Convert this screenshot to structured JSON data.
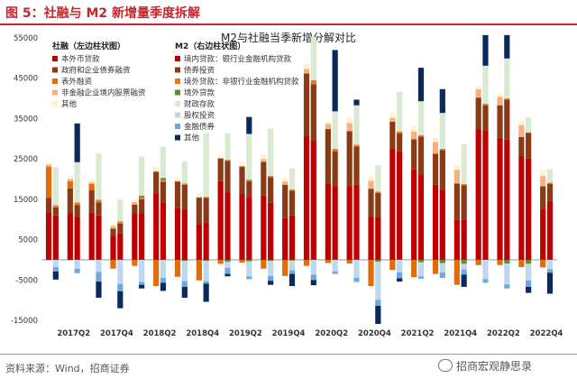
{
  "figure": {
    "title": "图 5：社融与 M2 新增量季度拆解",
    "source": "资料来源：Wind，招商证券",
    "watermark": "招商宏观静思录"
  },
  "chart_data": {
    "type": "bar",
    "stacked": true,
    "title": "M2与社融当季新增分解对比",
    "xlabel": "",
    "ylabel": "",
    "ylim": [
      -15000,
      55000
    ],
    "yticks": [
      -15000,
      -5000,
      5000,
      15000,
      25000,
      35000,
      45000,
      55000
    ],
    "ytick_labels": [
      "-15000",
      "-5000",
      "5000",
      "15000",
      "25000",
      "35000",
      "45000",
      "55000"
    ],
    "grid": false,
    "categories": [
      "2017Q1",
      "2017Q2",
      "2017Q3",
      "2017Q4",
      "2018Q1",
      "2018Q2",
      "2018Q3",
      "2018Q4",
      "2019Q1",
      "2019Q2",
      "2019Q3",
      "2019Q4",
      "2020Q1",
      "2020Q2",
      "2020Q3",
      "2020Q4",
      "2021Q1",
      "2021Q2",
      "2021Q3",
      "2021Q4",
      "2022Q1",
      "2022Q2",
      "2022Q3",
      "2022Q4"
    ],
    "x_tick_labels": [
      "2017Q2",
      "2017Q4",
      "2018Q2",
      "2018Q4",
      "2019Q2",
      "2019Q4",
      "2020Q2",
      "2020Q4",
      "2021Q2",
      "2021Q4",
      "2022Q2",
      "2022Q4"
    ],
    "legend_placement": "top-left",
    "tsf": {
      "legend_title": "社融（左边柱状图）",
      "series": [
        {
          "name": "本外币贷款",
          "color": "#c00000",
          "values": [
            11800,
            11500,
            11700,
            5900,
            11500,
            16500,
            12800,
            8900,
            19500,
            16400,
            15900,
            10300,
            30800,
            18900,
            18300,
            10700,
            27500,
            22400,
            18600,
            9900,
            32400,
            30200,
            25700,
            12500
          ]
        },
        {
          "name": "政府和企业债券融资",
          "color": "#8b3a16",
          "values": [
            3500,
            6200,
            5500,
            1800,
            2200,
            5300,
            6600,
            6500,
            5600,
            6700,
            8400,
            8300,
            15400,
            13500,
            13600,
            6900,
            6700,
            7500,
            7700,
            9000,
            7800,
            8100,
            4700,
            5700
          ]
        },
        {
          "name": "表外融资",
          "color": "#e26b0a",
          "values": [
            7800,
            1800,
            1600,
            -2200,
            -1500,
            -6500,
            -4200,
            -5100,
            -1000,
            -700,
            -2200,
            -4000,
            -1500,
            -800,
            -900,
            -6500,
            -2500,
            -4300,
            -3500,
            -6200,
            -1300,
            -1300,
            -1800,
            -1900
          ]
        },
        {
          "name": "非金融企业境内股票融资",
          "color": "#f4b183",
          "values": [
            500,
            500,
            400,
            700,
            600,
            200,
            200,
            200,
            200,
            200,
            700,
            800,
            1100,
            1300,
            2000,
            2000,
            1000,
            1900,
            2900,
            3400,
            2100,
            2100,
            3000,
            2600
          ]
        },
        {
          "name": "其他",
          "color": "#fff2cc",
          "values": [
            600,
            900,
            700,
            600,
            700,
            1000,
            1000,
            900,
            700,
            1100,
            1200,
            1100,
            1200,
            600,
            1200,
            1300,
            1200,
            1500,
            1000,
            1200,
            900,
            700,
            1200,
            1400
          ]
        }
      ]
    },
    "m2": {
      "legend_title": "M2（右边柱状图）",
      "series": [
        {
          "name": "境内贷款：银行业金融机构贷款",
          "color": "#c00000",
          "values": [
            11000,
            10600,
            11000,
            6500,
            11500,
            14200,
            12400,
            9300,
            16900,
            15600,
            14100,
            11000,
            29500,
            18300,
            18600,
            10500,
            27000,
            21000,
            17400,
            10000,
            32100,
            29800,
            25200,
            14600
          ]
        },
        {
          "name": "债券投资",
          "color": "#8b3a16",
          "values": [
            2000,
            3000,
            3200,
            2500,
            3500,
            5100,
            6200,
            6000,
            7600,
            3900,
            6400,
            6100,
            14000,
            8600,
            9500,
            6100,
            4300,
            9500,
            9800,
            8500,
            6200,
            9900,
            6200,
            4200
          ]
        },
        {
          "name": "境外贷款：非银行业金融机构贷款",
          "color": "#e87722",
          "values": [
            500,
            600,
            700,
            500,
            500,
            500,
            300,
            300,
            300,
            400,
            300,
            300,
            1000,
            600,
            400,
            300,
            500,
            400,
            300,
            300,
            400,
            300,
            200,
            300
          ]
        },
        {
          "name": "境外贷款",
          "color": "#5e8c31",
          "values": [
            0,
            0,
            0,
            0,
            400,
            500,
            -300,
            -300,
            -500,
            -400,
            -300,
            -200,
            0,
            0,
            0,
            -500,
            0,
            -600,
            -800,
            -1000,
            0,
            -900,
            -1000,
            0
          ]
        },
        {
          "name": "财政存款",
          "color": "#d9ead3",
          "values": [
            9500,
            10000,
            11400,
            5500,
            9700,
            7700,
            5500,
            15800,
            6600,
            11300,
            11700,
            5300,
            10800,
            9300,
            9800,
            6500,
            9900,
            8400,
            8900,
            9800,
            9400,
            9900,
            3700,
            3400
          ]
        },
        {
          "name": "股权投资",
          "color": "#bdd7ee",
          "values": [
            -1800,
            -2200,
            -3000,
            -6000,
            -5500,
            -4500,
            -5000,
            -5000,
            -1500,
            -3700,
            -3700,
            -2400,
            -3700,
            -2900,
            -4500,
            -9400,
            -3100,
            -3500,
            -2300,
            -1400,
            -4800,
            -5200,
            -4100,
            -2300
          ]
        },
        {
          "name": "金融债券",
          "color": "#6fa8dc",
          "values": [
            -1100,
            -1100,
            -2400,
            -1800,
            -700,
            -1200,
            -1400,
            -600,
            -1500,
            -700,
            -1200,
            -900,
            -1300,
            -600,
            -1000,
            -1500,
            -1500,
            -600,
            -1400,
            -1300,
            -900,
            -1000,
            -1600,
            -900
          ]
        },
        {
          "name": "其他",
          "color": "#0b2a5c",
          "values": [
            -2000,
            9600,
            -4000,
            -4200,
            -900,
            -2000,
            -2700,
            -4500,
            -600,
            4200,
            -1000,
            -3000,
            -1300,
            15200,
            1400,
            -4500,
            -800,
            8300,
            5900,
            -3000,
            7600,
            5800,
            -1500,
            -5200
          ]
        }
      ]
    }
  }
}
